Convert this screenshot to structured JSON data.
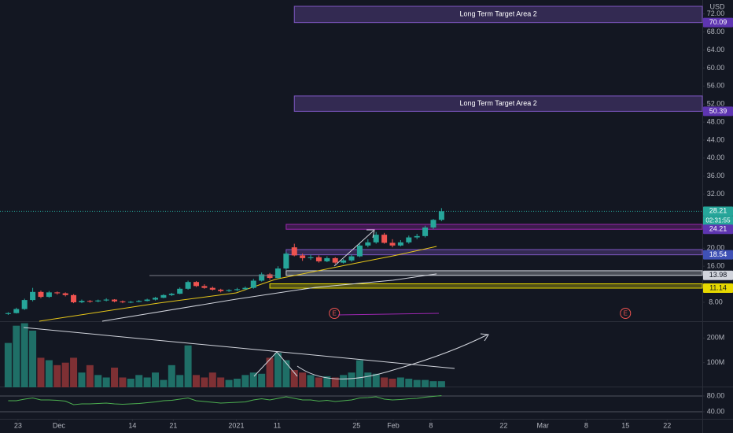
{
  "chart_data": [
    {
      "type": "candlestick",
      "currency": "USD",
      "countdown": "02:31:55",
      "open": [
        5.4,
        5.6,
        6.5,
        8.5,
        10.3,
        9.2,
        10.2,
        10.0,
        9.6,
        8.0,
        8.3,
        8.2,
        8.4,
        8.6,
        8.2,
        8.0,
        8.1,
        8.3,
        8.6,
        9.0,
        9.6,
        9.9,
        11.0,
        12.5,
        11.6,
        11.2,
        10.8,
        10.5,
        10.7,
        10.9,
        11.2,
        12.8,
        14.2,
        13.4,
        15.5,
        20.2,
        18.4,
        17.8,
        18.0,
        17.1,
        17.8,
        16.8,
        17.3,
        18.2,
        20.6,
        21.3,
        23.0,
        21.2,
        20.6,
        21.3,
        22.4,
        22.7,
        24.6,
        26.3
      ],
      "high": [
        5.8,
        6.8,
        8.8,
        11.2,
        10.6,
        10.5,
        10.4,
        10.2,
        9.8,
        8.6,
        8.5,
        8.6,
        8.9,
        8.7,
        8.4,
        8.3,
        8.5,
        8.8,
        9.2,
        9.8,
        10.1,
        11.3,
        12.8,
        12.7,
        12.0,
        11.5,
        11.0,
        10.9,
        11.2,
        11.5,
        13.2,
        14.6,
        14.5,
        16.0,
        19.2,
        21.0,
        18.8,
        18.6,
        18.4,
        18.2,
        18.0,
        17.6,
        18.6,
        21.0,
        22.0,
        23.6,
        23.4,
        22.0,
        21.8,
        22.8,
        23.2,
        25.0,
        26.5,
        28.9
      ],
      "low": [
        5.2,
        5.5,
        6.3,
        8.2,
        8.9,
        9.0,
        9.7,
        9.3,
        7.8,
        7.8,
        7.9,
        8.0,
        8.2,
        8.0,
        7.8,
        7.8,
        8.0,
        8.2,
        8.4,
        8.9,
        9.4,
        9.8,
        10.8,
        11.4,
        11.0,
        10.6,
        10.2,
        10.3,
        10.5,
        10.8,
        11.0,
        12.6,
        13.0,
        13.2,
        15.2,
        18.2,
        17.2,
        17.4,
        16.8,
        16.9,
        16.5,
        16.6,
        17.0,
        18.0,
        20.2,
        21.0,
        21.0,
        20.2,
        20.4,
        21.0,
        22.0,
        22.4,
        24.2,
        26.0
      ],
      "close": [
        5.6,
        6.5,
        8.5,
        10.3,
        9.2,
        10.2,
        10.0,
        9.6,
        8.0,
        8.3,
        8.2,
        8.4,
        8.6,
        8.2,
        8.0,
        8.1,
        8.3,
        8.6,
        9.0,
        9.6,
        9.9,
        11.0,
        12.5,
        11.6,
        11.2,
        10.8,
        10.5,
        10.7,
        10.9,
        11.2,
        12.8,
        14.2,
        13.4,
        15.5,
        18.8,
        18.4,
        17.8,
        18.0,
        17.1,
        17.8,
        16.8,
        17.3,
        18.2,
        20.6,
        21.3,
        23.0,
        21.2,
        20.6,
        21.3,
        22.4,
        22.7,
        24.6,
        26.3,
        28.21
      ],
      "up_color": "#26a69a",
      "down_color": "#ef5350",
      "xlim": [
        -1,
        84.9
      ],
      "ylim": [
        3.8,
        75.1
      ],
      "yticks": [
        {
          "value": 8,
          "label": "8.00"
        },
        {
          "value": 16,
          "label": "16.00"
        },
        {
          "value": 20,
          "label": "20.00"
        },
        {
          "value": 32,
          "label": "32.00"
        },
        {
          "value": 36,
          "label": "36.00"
        },
        {
          "value": 40,
          "label": "40.00"
        },
        {
          "value": 44,
          "label": "44.00"
        },
        {
          "value": 48,
          "label": "48.00"
        },
        {
          "value": 52,
          "label": "52.00"
        },
        {
          "value": 56,
          "label": "56.00"
        },
        {
          "value": 60,
          "label": "60.00"
        },
        {
          "value": 64,
          "label": "64.00"
        },
        {
          "value": 68,
          "label": "68.00"
        },
        {
          "value": 72,
          "label": "72.00"
        }
      ],
      "lines": [
        {
          "color": "#e6c619",
          "x": [
            3.8,
            18.3,
            27.9,
            32.7,
            42.3,
            47.1,
            52.4
          ],
          "values": [
            3.8,
            7.8,
            10.1,
            13.1,
            16.6,
            18.3,
            20.4
          ]
        },
        {
          "color": "#d1d4dc",
          "x": [
            11.5,
            27.9,
            37.5,
            47.1,
            52.4
          ],
          "values": [
            3.8,
            8.7,
            11.3,
            12.9,
            14.3
          ]
        }
      ],
      "zones": [
        {
          "label": "Long Term Target Area 2",
          "low": 70.09,
          "high": 73.7,
          "start": 35,
          "color": "#7e57c2"
        },
        {
          "label": "Long Term Target Area 2",
          "low": 50.39,
          "high": 53.8,
          "start": 35,
          "color": "#7e57c2"
        },
        {
          "low": 24.21,
          "high": 25.3,
          "start": 34,
          "color": "#9c27b0"
        },
        {
          "low": 18.54,
          "high": 19.7,
          "start": 34,
          "color": "#7e57c2"
        },
        {
          "low": 13.98,
          "high": 15.0,
          "start": 34,
          "color": "#d1d4dc"
        },
        {
          "low": 11.14,
          "high": 12.1,
          "start": 32,
          "color": "#e6d800"
        }
      ],
      "price_tags": [
        {
          "value": 70.09,
          "color": "#5e35b1",
          "text_color": "#ffffff"
        },
        {
          "value": 50.39,
          "color": "#5e35b1",
          "text_color": "#ffffff"
        },
        {
          "value": 28.21,
          "color": "#26a69a",
          "text_color": "#ffffff"
        },
        {
          "value": 24.21,
          "color": "#5e35b1",
          "text_color": "#ffffff"
        },
        {
          "value": 18.54,
          "color": "#3f51b5",
          "text_color": "#ffffff"
        },
        {
          "value": 13.98,
          "color": "#d1d4dc",
          "text_color": "#131722"
        },
        {
          "value": 11.14,
          "color": "#e6d800",
          "text_color": "#131722"
        }
      ],
      "events": [
        {
          "x": 39.9,
          "label": "E"
        },
        {
          "x": 75.5,
          "label": "E"
        }
      ]
    },
    {
      "type": "bar",
      "values": [
        180,
        250,
        260,
        230,
        120,
        110,
        90,
        100,
        120,
        60,
        90,
        50,
        40,
        80,
        40,
        35,
        50,
        40,
        60,
        30,
        90,
        50,
        170,
        50,
        40,
        60,
        40,
        30,
        35,
        50,
        60,
        55,
        120,
        140,
        110,
        70,
        60,
        50,
        40,
        45,
        40,
        50,
        60,
        110,
        60,
        55,
        40,
        35,
        40,
        35,
        30,
        30,
        25,
        25
      ],
      "up_color": "#1f6f67",
      "down_color": "#7e3034",
      "xlim": [
        -1,
        84.9
      ],
      "ylim": [
        0,
        265
      ],
      "yticks": [
        {
          "value": 100,
          "label": "100M"
        },
        {
          "value": 200,
          "label": "200M"
        }
      ]
    },
    {
      "type": "line",
      "values": [
        68,
        68,
        72,
        75,
        70,
        70,
        69,
        67,
        58,
        60,
        60,
        61,
        62,
        60,
        59,
        60,
        61,
        63,
        65,
        68,
        69,
        72,
        75,
        68,
        66,
        64,
        62,
        63,
        64,
        65,
        70,
        73,
        70,
        74,
        78,
        74,
        70,
        70,
        67,
        69,
        66,
        68,
        70,
        75,
        76,
        78,
        72,
        70,
        71,
        73,
        74,
        77,
        79,
        81
      ],
      "color": "#4caf50",
      "grid": true,
      "xlim": [
        -1,
        84.9
      ],
      "ylim": [
        22,
        102
      ],
      "yticks": [
        {
          "value": 80,
          "label": "80.00"
        },
        {
          "value": 40,
          "label": "40.00"
        }
      ],
      "xticks": [
        {
          "value": 1.2,
          "label": "23"
        },
        {
          "value": 6.2,
          "label": "Dec"
        },
        {
          "value": 15.2,
          "label": "14"
        },
        {
          "value": 20.2,
          "label": "21"
        },
        {
          "value": 27.9,
          "label": "2021"
        },
        {
          "value": 32.9,
          "label": "11"
        },
        {
          "value": 42.6,
          "label": "25"
        },
        {
          "value": 47.1,
          "label": "Feb"
        },
        {
          "value": 51.7,
          "label": "8"
        },
        {
          "value": 60.6,
          "label": "22"
        },
        {
          "value": 65.4,
          "label": "Mar"
        },
        {
          "value": 70.7,
          "label": "8"
        },
        {
          "value": 75.5,
          "label": "15"
        },
        {
          "value": 80.6,
          "label": "22"
        }
      ]
    }
  ]
}
